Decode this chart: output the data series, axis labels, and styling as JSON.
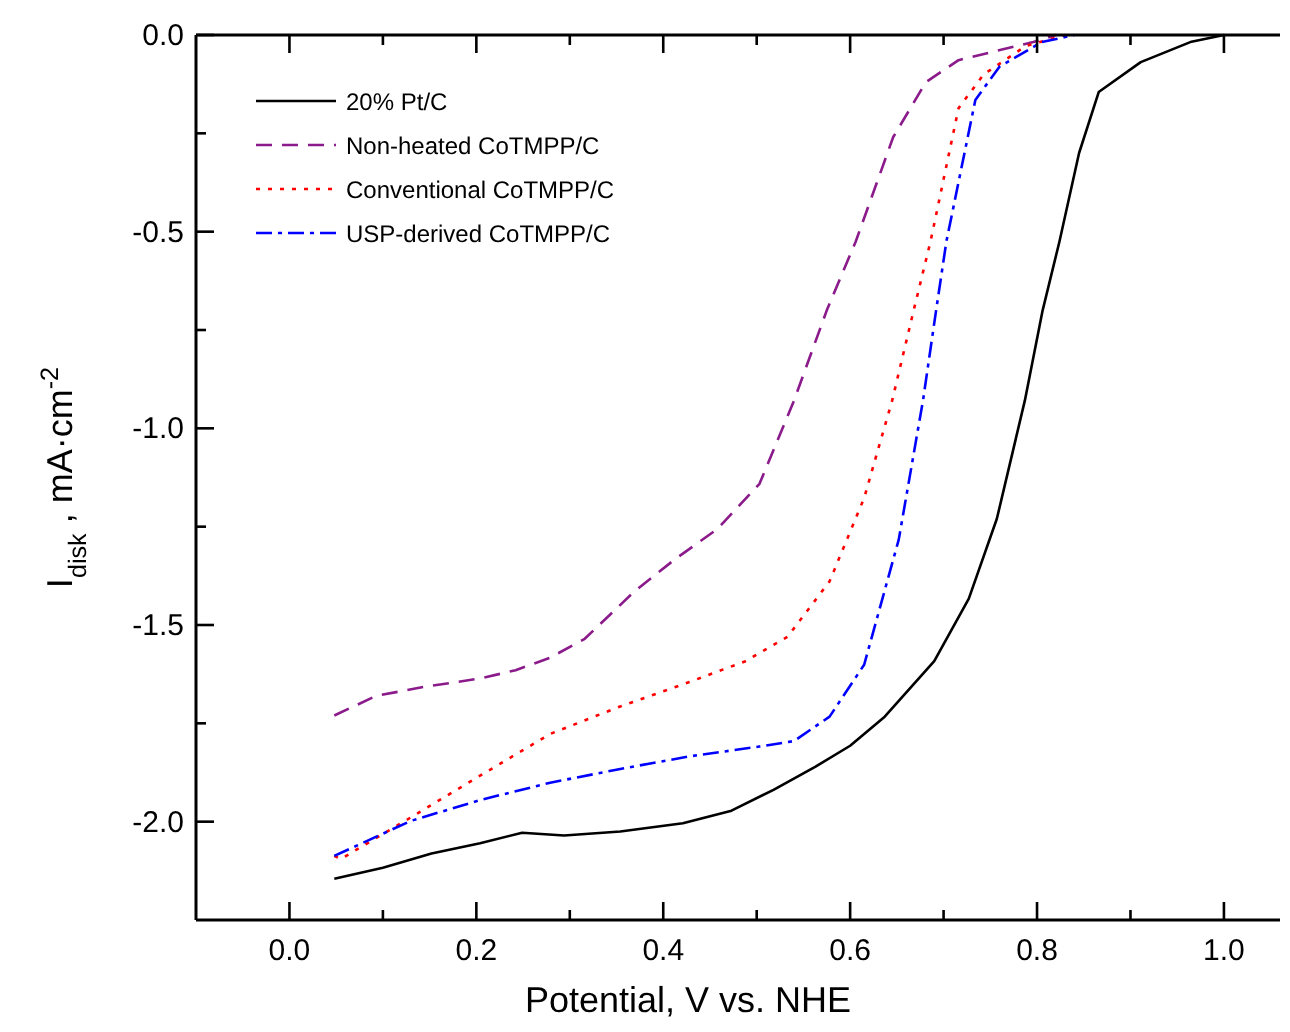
{
  "chart_data": {
    "type": "line",
    "xlabel": "Potential, V vs. NHE",
    "ylabel": "I$_{disk}$ , mA·cm$^{-2}$",
    "xlim": [
      -0.1,
      1.06
    ],
    "ylim": [
      -2.25,
      0
    ],
    "xticks": [
      {
        "value": 0,
        "label": "0.0"
      },
      {
        "value": 0.1,
        "label": null
      },
      {
        "value": 0.2,
        "label": "0.2"
      },
      {
        "value": 0.3,
        "label": null
      },
      {
        "value": 0.4,
        "label": "0.4"
      },
      {
        "value": 0.5,
        "label": null
      },
      {
        "value": 0.6,
        "label": "0.6"
      },
      {
        "value": 0.7,
        "label": null
      },
      {
        "value": 0.8,
        "label": "0.8"
      },
      {
        "value": 0.9,
        "label": null
      },
      {
        "value": 1,
        "label": "1.0"
      }
    ],
    "yticks": [
      {
        "value": 0,
        "label": "0.0"
      },
      {
        "value": -0.25,
        "label": null
      },
      {
        "value": -0.5,
        "label": "-0.5"
      },
      {
        "value": -0.75,
        "label": null
      },
      {
        "value": -1,
        "label": "-1.0"
      },
      {
        "value": -1.25,
        "label": null
      },
      {
        "value": -1.5,
        "label": "-1.5"
      },
      {
        "value": -1.75,
        "label": null
      },
      {
        "value": -2,
        "label": "-2.0"
      }
    ],
    "grid": false,
    "legend": "top left",
    "marker": "none",
    "series": [
      {
        "name": "20% Pt/C",
        "color": "#000000",
        "line_style": "solid",
        "x": [
          0.048,
          0.1,
          0.152,
          0.204,
          0.249,
          0.294,
          0.354,
          0.421,
          0.473,
          0.518,
          0.563,
          0.6,
          0.637,
          0.69,
          0.727,
          0.757,
          0.787,
          0.806,
          0.824,
          0.845,
          0.866,
          0.911,
          0.964,
          1.0
        ],
        "values": [
          -2.145,
          -2.117,
          -2.081,
          -2.055,
          -2.028,
          -2.035,
          -2.025,
          -2.004,
          -1.972,
          -1.919,
          -1.86,
          -1.807,
          -1.733,
          -1.592,
          -1.433,
          -1.23,
          -0.929,
          -0.7,
          -0.525,
          -0.3,
          -0.145,
          -0.069,
          -0.018,
          0
        ]
      },
      {
        "name": "Non-heated CoTMPP/C",
        "color": "#8b1a8b",
        "line_style": "dashed",
        "x": [
          0.048,
          0.093,
          0.145,
          0.204,
          0.242,
          0.279,
          0.316,
          0.369,
          0.413,
          0.458,
          0.503,
          0.54,
          0.575,
          0.606,
          0.646,
          0.681,
          0.716,
          0.752,
          0.796,
          0.82
        ],
        "values": [
          -1.73,
          -1.68,
          -1.657,
          -1.636,
          -1.615,
          -1.583,
          -1.535,
          -1.415,
          -1.332,
          -1.256,
          -1.141,
          -0.929,
          -0.7,
          -0.525,
          -0.26,
          -0.12,
          -0.064,
          -0.043,
          -0.018,
          0
        ]
      },
      {
        "name": "Conventional CoTMPP/C",
        "color": "#ff0000",
        "line_style": "dotted",
        "x": [
          0.048,
          0.055,
          0.13,
          0.204,
          0.279,
          0.354,
          0.428,
          0.488,
          0.533,
          0.578,
          0.615,
          0.645,
          0.668,
          0.686,
          0.716,
          0.743,
          0.788,
          0.83
        ],
        "values": [
          -2.087,
          -2.095,
          -1.989,
          -1.883,
          -1.777,
          -1.707,
          -1.645,
          -1.592,
          -1.53,
          -1.389,
          -1.177,
          -0.929,
          -0.7,
          -0.525,
          -0.186,
          -0.1,
          -0.028,
          0
        ]
      },
      {
        "name": "USP-derived CoTMPP/C",
        "color": "#0000ff",
        "line_style": "dashdot",
        "x": [
          0.048,
          0.13,
          0.204,
          0.279,
          0.354,
          0.428,
          0.503,
          0.54,
          0.578,
          0.615,
          0.652,
          0.678,
          0.692,
          0.703,
          0.734,
          0.76,
          0.805,
          0.84
        ],
        "values": [
          -2.087,
          -1.998,
          -1.945,
          -1.901,
          -1.866,
          -1.834,
          -1.809,
          -1.795,
          -1.733,
          -1.601,
          -1.283,
          -0.929,
          -0.7,
          -0.525,
          -0.165,
          -0.08,
          -0.018,
          0
        ]
      }
    ]
  }
}
